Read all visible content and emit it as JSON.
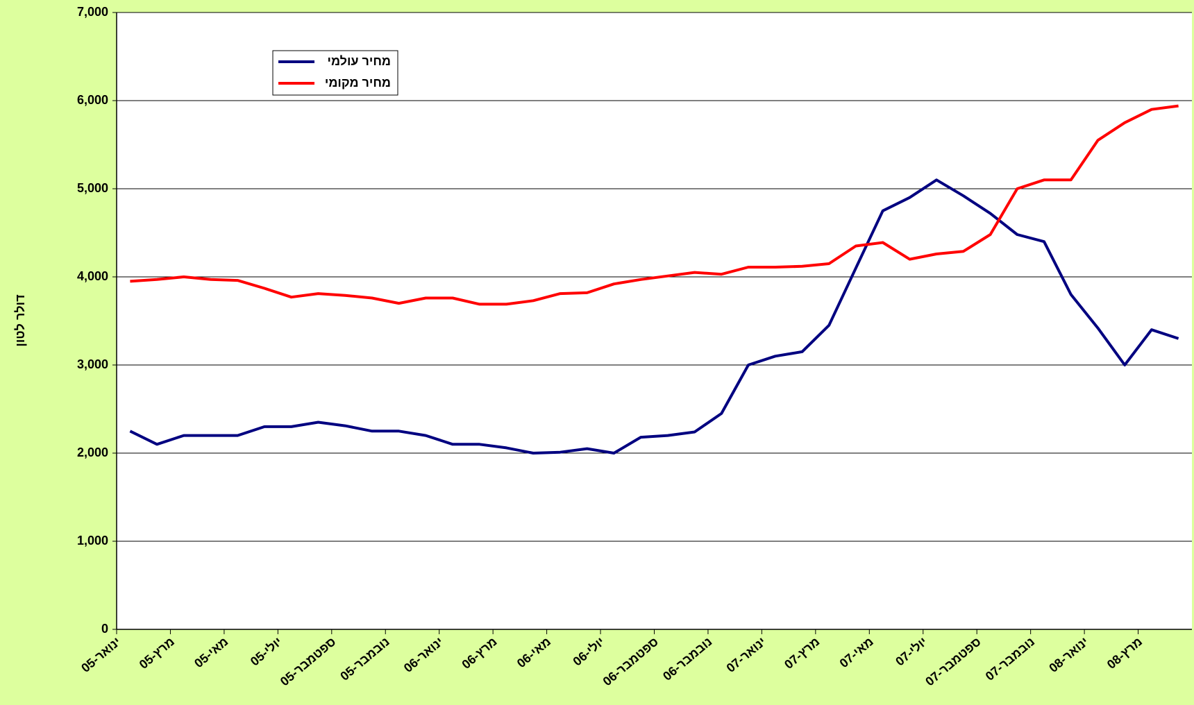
{
  "chart_data": {
    "type": "line",
    "y_label": "דולר לטון",
    "categories": [
      "ינואר-05",
      null,
      "מרץ-05",
      null,
      "מאי-05",
      null,
      "יולי-05",
      null,
      "ספטמבר-05",
      null,
      "נובמבר-05",
      null,
      "ינואר-06",
      null,
      "מרץ-06",
      null,
      "מאי-06",
      null,
      "יולי-06",
      null,
      "ספטמבר-06",
      null,
      "נובמבר-06",
      null,
      "ינואר-07",
      null,
      "מרץ-07",
      null,
      "מאי-07",
      null,
      "יולי-07",
      null,
      "ספטמבר-07",
      null,
      "נובמבר-07",
      null,
      "ינואר-08",
      null,
      "מרץ-08",
      null
    ],
    "series": [
      {
        "name": "מחיר עולמי",
        "color": "#000080",
        "values": [
          2250,
          2100,
          2200,
          2200,
          2200,
          2300,
          2300,
          2350,
          2310,
          2250,
          2250,
          2200,
          2100,
          2100,
          2060,
          2000,
          2010,
          2050,
          2000,
          2180,
          2200,
          2240,
          2450,
          3000,
          3100,
          3150,
          3450,
          4100,
          4750,
          4900,
          5100,
          4920,
          4720,
          4480,
          4400,
          3800,
          3420,
          3000,
          3400,
          3300
        ]
      },
      {
        "name": "מחיר מקומי",
        "color": "#ff0000",
        "values": [
          3950,
          3970,
          4000,
          3970,
          3960,
          3870,
          3770,
          3810,
          3790,
          3760,
          3700,
          3760,
          3760,
          3690,
          3690,
          3730,
          3810,
          3820,
          3920,
          3970,
          4010,
          4050,
          4030,
          4110,
          4110,
          4120,
          4150,
          4350,
          4390,
          4200,
          4260,
          4290,
          4480,
          5000,
          5100,
          5100,
          5550,
          5750,
          5900,
          5940
        ]
      }
    ],
    "ylim": [
      0,
      7000
    ],
    "yticks": [
      0,
      {
        "value": 1000,
        "label": "1,000"
      },
      {
        "value": 2000,
        "label": "2,000"
      },
      {
        "value": 3000,
        "label": "3,000"
      },
      {
        "value": 4000,
        "label": "4,000"
      },
      {
        "value": 5000,
        "label": "5,000"
      },
      {
        "value": 6000,
        "label": "6,000"
      },
      {
        "value": 7000,
        "label": "7,000"
      }
    ],
    "grid": true
  }
}
